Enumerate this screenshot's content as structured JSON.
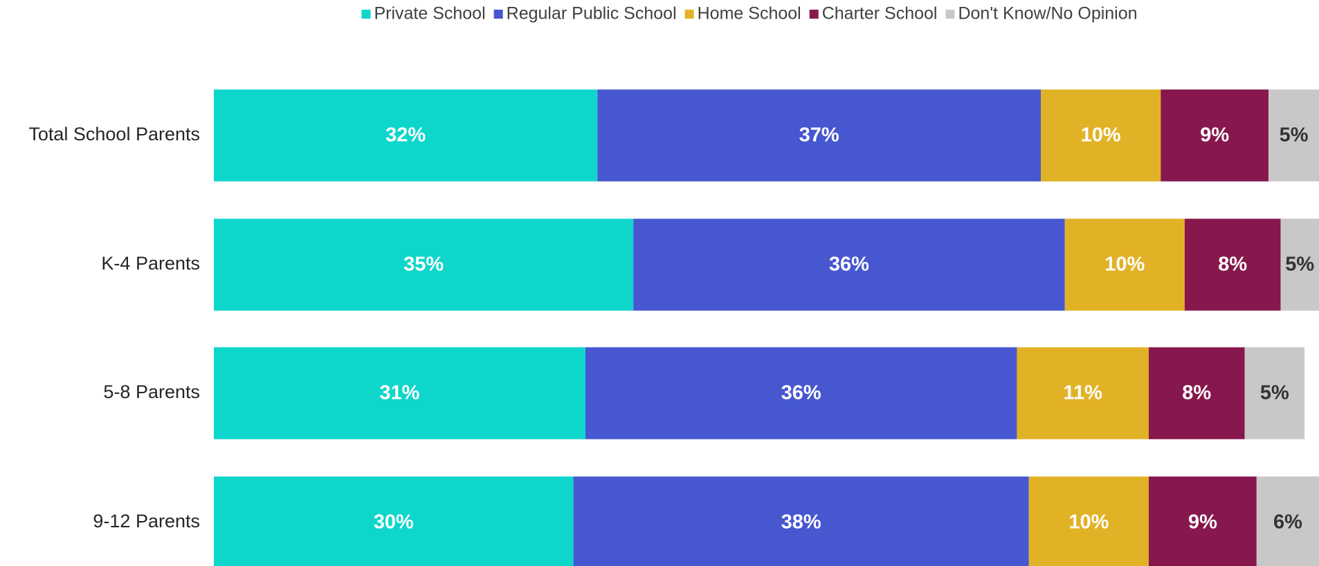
{
  "chart_data": {
    "type": "stacked_bar_horizontal",
    "categories": [
      "Total School Parents",
      "K-4 Parents",
      "5-8 Parents",
      "9-12 Parents"
    ],
    "xlim": [
      0,
      100
    ],
    "legend": "top",
    "series": [
      {
        "name": "Private School",
        "color": "#0fd6cb",
        "values": [
          32,
          35,
          31,
          30
        ],
        "value_labels": [
          "32%",
          "35%",
          "31%",
          "30%"
        ]
      },
      {
        "name": "Regular Public School",
        "color": "#4757d0",
        "values": [
          37,
          36,
          36,
          38
        ],
        "value_labels": [
          "37%",
          "36%",
          "36%",
          "38%"
        ]
      },
      {
        "name": "Home School",
        "color": "#e2b226",
        "values": [
          10,
          10,
          11,
          10
        ],
        "value_labels": [
          "10%",
          "10%",
          "11%",
          "10%"
        ]
      },
      {
        "name": "Charter School",
        "color": "#86184d",
        "values": [
          9,
          8,
          8,
          9
        ],
        "value_labels": [
          "9%",
          "8%",
          "8%",
          "9%"
        ]
      },
      {
        "name": "Don't Know/No Opinion",
        "color": "#c8c8c8",
        "values": [
          5,
          5,
          5,
          6
        ],
        "value_labels": [
          "5%",
          "5%",
          "5%",
          "6%"
        ]
      }
    ]
  }
}
